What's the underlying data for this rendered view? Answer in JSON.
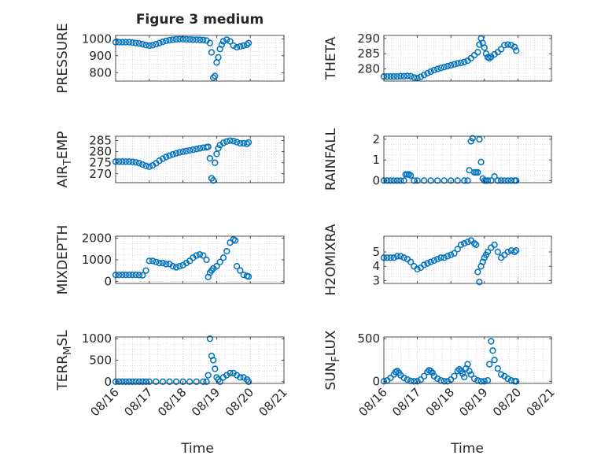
{
  "figure": {
    "title": "Figure 3 medium",
    "xlabel": "Time",
    "x_tick_labels": [
      "08/16",
      "08/17",
      "08/18",
      "08/19",
      "08/20",
      "08/21"
    ],
    "marker_color": "#0072bd"
  },
  "chart_data": [
    {
      "type": "scatter",
      "ylabel": "PRESSURE",
      "ylim": [
        750,
        1020
      ],
      "yticks": [
        800,
        900,
        1000
      ],
      "grid": true,
      "xlim": [
        0,
        5
      ],
      "x_ticks": [
        0,
        1,
        2,
        3,
        4,
        5
      ],
      "x": [
        0.0,
        0.1,
        0.2,
        0.3,
        0.4,
        0.5,
        0.6,
        0.7,
        0.8,
        0.9,
        1.0,
        1.1,
        1.2,
        1.3,
        1.4,
        1.5,
        1.6,
        1.7,
        1.8,
        1.9,
        2.0,
        2.1,
        2.2,
        2.3,
        2.4,
        2.5,
        2.6,
        2.7,
        2.8,
        2.85,
        2.9,
        2.95,
        3.0,
        3.05,
        3.1,
        3.15,
        3.2,
        3.3,
        3.4,
        3.5,
        3.6,
        3.7,
        3.8,
        3.9,
        3.95
      ],
      "y": [
        980,
        980,
        980,
        980,
        980,
        978,
        975,
        972,
        968,
        963,
        960,
        962,
        968,
        975,
        982,
        988,
        992,
        995,
        997,
        998,
        998,
        997,
        996,
        995,
        995,
        994,
        993,
        990,
        975,
        920,
        770,
        780,
        860,
        890,
        940,
        965,
        985,
        995,
        985,
        960,
        950,
        955,
        960,
        965,
        975
      ]
    },
    {
      "type": "scatter",
      "ylabel": "THETA",
      "ylim": [
        276,
        291
      ],
      "yticks": [
        280,
        285,
        290
      ],
      "grid": true,
      "xlim": [
        0,
        5
      ],
      "x_ticks": [
        0,
        1,
        2,
        3,
        4,
        5
      ],
      "x": [
        0.0,
        0.1,
        0.2,
        0.3,
        0.4,
        0.5,
        0.6,
        0.7,
        0.8,
        0.9,
        1.0,
        1.1,
        1.2,
        1.3,
        1.4,
        1.5,
        1.6,
        1.7,
        1.8,
        1.9,
        2.0,
        2.1,
        2.2,
        2.3,
        2.4,
        2.5,
        2.6,
        2.7,
        2.8,
        2.85,
        2.9,
        2.95,
        3.0,
        3.05,
        3.1,
        3.15,
        3.2,
        3.3,
        3.4,
        3.5,
        3.6,
        3.7,
        3.8,
        3.9,
        3.95
      ],
      "y": [
        277.5,
        277.5,
        277.5,
        277.5,
        277.5,
        277.6,
        277.6,
        277.7,
        277.6,
        277.2,
        277.0,
        277.4,
        278.0,
        278.6,
        279.1,
        279.6,
        280.0,
        280.3,
        280.6,
        280.9,
        281.2,
        281.5,
        281.8,
        282.0,
        282.3,
        282.7,
        283.5,
        284.5,
        285.5,
        288.0,
        290.0,
        288.5,
        287.0,
        285.0,
        283.8,
        283.5,
        284.0,
        284.8,
        285.5,
        286.5,
        287.8,
        288.0,
        287.8,
        287.2,
        286.0
      ]
    },
    {
      "type": "scatter",
      "ylabel": "AIR_TEMP",
      "ylabel_main": "AIR",
      "ylabel_sub": "T",
      "ylabel_rest": "EMP",
      "ylim": [
        266,
        287
      ],
      "yticks": [
        270,
        275,
        280,
        285
      ],
      "grid": true,
      "xlim": [
        0,
        5
      ],
      "x_ticks": [
        0,
        1,
        2,
        3,
        4,
        5
      ],
      "x": [
        0.0,
        0.1,
        0.2,
        0.3,
        0.4,
        0.5,
        0.6,
        0.7,
        0.8,
        0.9,
        1.0,
        1.1,
        1.2,
        1.3,
        1.4,
        1.5,
        1.6,
        1.7,
        1.8,
        1.9,
        2.0,
        2.1,
        2.2,
        2.3,
        2.4,
        2.5,
        2.6,
        2.7,
        2.75,
        2.8,
        2.85,
        2.9,
        2.95,
        3.0,
        3.05,
        3.1,
        3.2,
        3.3,
        3.4,
        3.5,
        3.6,
        3.7,
        3.8,
        3.9,
        3.95
      ],
      "y": [
        275.5,
        275.5,
        275.5,
        275.5,
        275.5,
        275.4,
        275.2,
        274.8,
        274.2,
        273.6,
        273.2,
        273.8,
        274.8,
        275.9,
        276.8,
        277.6,
        278.2,
        278.8,
        279.3,
        279.7,
        280.0,
        280.3,
        280.6,
        280.9,
        281.2,
        281.5,
        281.8,
        282.0,
        282.2,
        277.0,
        268.0,
        267.0,
        275.0,
        279.0,
        281.5,
        283.0,
        284.0,
        284.6,
        285.0,
        284.8,
        284.3,
        283.8,
        283.8,
        283.5,
        284.2
      ]
    },
    {
      "type": "scatter",
      "ylabel": "RAINFALL",
      "ylim": [
        -0.1,
        2.15
      ],
      "yticks": [
        0,
        1,
        2
      ],
      "grid": true,
      "xlim": [
        0,
        5
      ],
      "x_ticks": [
        0,
        1,
        2,
        3,
        4,
        5
      ],
      "x": [
        0.0,
        0.1,
        0.2,
        0.3,
        0.4,
        0.5,
        0.6,
        0.65,
        0.7,
        0.75,
        0.8,
        0.9,
        1.0,
        1.2,
        1.4,
        1.6,
        1.8,
        2.0,
        2.2,
        2.4,
        2.5,
        2.55,
        2.6,
        2.65,
        2.7,
        2.75,
        2.8,
        2.85,
        2.9,
        2.95,
        3.0,
        3.05,
        3.1,
        3.2,
        3.3,
        3.4,
        3.5,
        3.6,
        3.7,
        3.8,
        3.9,
        3.95
      ],
      "y": [
        0,
        0,
        0,
        0,
        0,
        0,
        0,
        0.3,
        0.3,
        0.3,
        0.25,
        0,
        0,
        0,
        0,
        0,
        0,
        0,
        0,
        0,
        0,
        0.5,
        1.9,
        2.05,
        0.4,
        0.4,
        0.4,
        2.0,
        0.9,
        0.1,
        0,
        0,
        0,
        0,
        0.2,
        0,
        0,
        0,
        0,
        0,
        0,
        0
      ]
    },
    {
      "type": "scatter",
      "ylabel": "MIXDEPTH",
      "ylim": [
        -100,
        2100
      ],
      "yticks": [
        0,
        1000,
        2000
      ],
      "grid": true,
      "xlim": [
        0,
        5
      ],
      "x_ticks": [
        0,
        1,
        2,
        3,
        4,
        5
      ],
      "x": [
        0.0,
        0.1,
        0.2,
        0.3,
        0.4,
        0.5,
        0.6,
        0.7,
        0.8,
        0.9,
        1.0,
        1.1,
        1.2,
        1.3,
        1.4,
        1.5,
        1.6,
        1.7,
        1.8,
        1.9,
        2.0,
        2.1,
        2.2,
        2.3,
        2.4,
        2.5,
        2.6,
        2.7,
        2.75,
        2.8,
        2.85,
        2.9,
        3.0,
        3.1,
        3.2,
        3.3,
        3.4,
        3.5,
        3.55,
        3.6,
        3.7,
        3.8,
        3.9,
        3.95
      ],
      "y": [
        300,
        300,
        300,
        300,
        300,
        300,
        300,
        290,
        280,
        500,
        950,
        950,
        900,
        850,
        850,
        800,
        800,
        700,
        650,
        700,
        750,
        850,
        950,
        1100,
        1200,
        1250,
        1200,
        1000,
        200,
        400,
        500,
        600,
        700,
        900,
        1100,
        1400,
        1800,
        1950,
        1900,
        700,
        500,
        300,
        250,
        220
      ]
    },
    {
      "type": "scatter",
      "ylabel": "H2OMIXRA",
      "ylim": [
        2.8,
        6.1
      ],
      "yticks": [
        3,
        4,
        5
      ],
      "grid": true,
      "xlim": [
        0,
        5
      ],
      "x_ticks": [
        0,
        1,
        2,
        3,
        4,
        5
      ],
      "x": [
        0.0,
        0.1,
        0.2,
        0.3,
        0.4,
        0.5,
        0.6,
        0.7,
        0.8,
        0.9,
        1.0,
        1.1,
        1.2,
        1.3,
        1.4,
        1.5,
        1.6,
        1.7,
        1.8,
        1.9,
        2.0,
        2.1,
        2.2,
        2.3,
        2.4,
        2.5,
        2.6,
        2.7,
        2.75,
        2.8,
        2.85,
        2.9,
        2.95,
        3.0,
        3.05,
        3.1,
        3.2,
        3.3,
        3.4,
        3.5,
        3.6,
        3.7,
        3.8,
        3.9,
        3.95
      ],
      "y": [
        4.6,
        4.6,
        4.6,
        4.6,
        4.7,
        4.7,
        4.6,
        4.5,
        4.3,
        4.0,
        3.8,
        3.9,
        4.1,
        4.2,
        4.3,
        4.4,
        4.5,
        4.6,
        4.6,
        4.7,
        4.8,
        4.9,
        5.2,
        5.5,
        5.6,
        5.7,
        5.8,
        5.6,
        5.5,
        3.6,
        2.9,
        4.0,
        4.3,
        4.6,
        4.8,
        5.0,
        5.3,
        5.5,
        5.0,
        4.6,
        4.8,
        5.0,
        5.1,
        5.0,
        5.1
      ]
    },
    {
      "type": "scatter",
      "ylabel": "TERR_MSL",
      "ylabel_main": "TERR",
      "ylabel_sub": "M",
      "ylabel_rest": "SL",
      "ylim": [
        -40,
        1040
      ],
      "yticks": [
        0,
        500,
        1000
      ],
      "grid": true,
      "xlim": [
        0,
        5
      ],
      "x_ticks": [
        0,
        1,
        2,
        3,
        4,
        5
      ],
      "x": [
        0.0,
        0.1,
        0.2,
        0.3,
        0.4,
        0.5,
        0.6,
        0.7,
        0.8,
        0.9,
        1.0,
        1.2,
        1.4,
        1.6,
        1.8,
        2.0,
        2.2,
        2.4,
        2.6,
        2.7,
        2.75,
        2.8,
        2.85,
        2.9,
        2.95,
        3.0,
        3.05,
        3.1,
        3.2,
        3.3,
        3.4,
        3.5,
        3.6,
        3.7,
        3.8,
        3.9,
        3.95
      ],
      "y": [
        0,
        0,
        0,
        0,
        0,
        0,
        0,
        0,
        0,
        0,
        0,
        0,
        0,
        0,
        0,
        0,
        0,
        0,
        0,
        0,
        150,
        1000,
        600,
        500,
        300,
        100,
        50,
        0,
        100,
        150,
        200,
        200,
        150,
        100,
        100,
        50,
        0
      ]
    },
    {
      "type": "scatter",
      "ylabel": "SUN_FLUX",
      "ylabel_main": "SUN",
      "ylabel_sub": "F",
      "ylabel_rest": "LUX",
      "ylim": [
        -25,
        520
      ],
      "yticks": [
        0,
        500
      ],
      "grid": true,
      "xlim": [
        0,
        5
      ],
      "x_ticks": [
        0,
        1,
        2,
        3,
        4,
        5
      ],
      "x": [
        0.0,
        0.1,
        0.2,
        0.3,
        0.35,
        0.4,
        0.45,
        0.5,
        0.6,
        0.7,
        0.8,
        0.9,
        1.0,
        1.1,
        1.2,
        1.3,
        1.35,
        1.4,
        1.45,
        1.5,
        1.6,
        1.7,
        1.8,
        1.9,
        2.0,
        2.1,
        2.2,
        2.25,
        2.3,
        2.35,
        2.4,
        2.45,
        2.5,
        2.55,
        2.6,
        2.7,
        2.8,
        2.9,
        3.0,
        3.1,
        3.15,
        3.2,
        3.25,
        3.3,
        3.4,
        3.5,
        3.6,
        3.7,
        3.8,
        3.9,
        3.95
      ],
      "y": [
        0,
        10,
        40,
        80,
        110,
        120,
        100,
        70,
        40,
        20,
        5,
        0,
        0,
        20,
        60,
        110,
        130,
        120,
        100,
        60,
        30,
        10,
        0,
        0,
        20,
        60,
        120,
        140,
        120,
        90,
        50,
        150,
        200,
        120,
        80,
        30,
        10,
        0,
        0,
        10,
        200,
        470,
        360,
        250,
        150,
        80,
        60,
        30,
        10,
        0,
        0
      ]
    }
  ]
}
